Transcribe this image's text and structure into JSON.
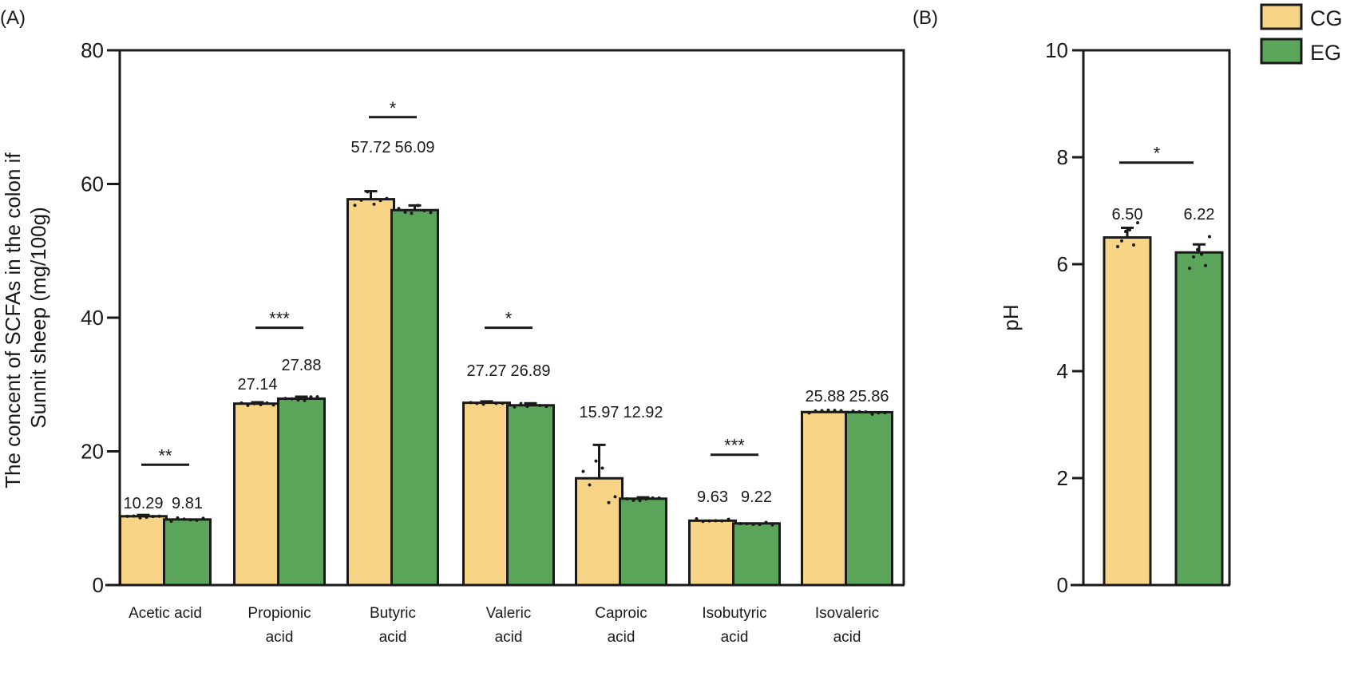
{
  "figure": {
    "legend": {
      "placement": "top-right",
      "entries": [
        {
          "label": "CG",
          "color": "#F7D486"
        },
        {
          "label": "EG",
          "color": "#5BA55A"
        }
      ]
    }
  },
  "chart_data": [
    {
      "panel": "(A)",
      "type": "bar",
      "title": "",
      "xlabel": "",
      "ylabel": "The concent of SCFAs in the colon if Sunnit sheep (mg/100g)",
      "ylabel_lines": [
        "The concent of SCFAs in the colon if",
        "Sunnit sheep (mg/100g)"
      ],
      "ylim": [
        0,
        80
      ],
      "yticks": [
        0,
        20,
        40,
        60,
        80
      ],
      "grid": false,
      "categories": [
        "Acetic acid",
        "Propionic acid",
        "Butyric acid",
        "Valeric acid",
        "Caproic acid",
        "Isobutyric acid",
        "Isovaleric acid"
      ],
      "category_lines": [
        [
          "Acetic acid"
        ],
        [
          "Propionic",
          "acid"
        ],
        [
          "Butyric",
          "acid"
        ],
        [
          "Valeric",
          "acid"
        ],
        [
          "Caproic",
          "acid"
        ],
        [
          "Isobutyric",
          "acid"
        ],
        [
          "Isovaleric",
          "acid"
        ]
      ],
      "series": [
        {
          "name": "CG",
          "color": "#F7D486",
          "values": [
            10.29,
            27.14,
            57.72,
            27.27,
            15.97,
            9.63,
            25.88
          ],
          "labels": [
            "10.29",
            "27.14",
            "57.72",
            "27.27",
            "15.97",
            "9.63",
            "25.88"
          ],
          "error": [
            0.2,
            0.2,
            1.2,
            0.2,
            5.0,
            0.15,
            0.1
          ]
        },
        {
          "name": "EG",
          "color": "#5BA55A",
          "values": [
            9.81,
            27.88,
            56.09,
            26.89,
            12.92,
            9.22,
            25.86
          ],
          "labels": [
            "9.81",
            "27.88",
            "56.09",
            "26.89",
            "12.92",
            "9.22",
            "25.86"
          ],
          "error": [
            0.1,
            0.3,
            0.7,
            0.3,
            0.2,
            0.15,
            0.1
          ]
        }
      ],
      "significance": [
        {
          "category": "Acetic acid",
          "label": "**",
          "y": 18
        },
        {
          "category": "Propionic acid",
          "label": "***",
          "y": 38.5
        },
        {
          "category": "Butyric acid",
          "label": "*",
          "y": 70
        },
        {
          "category": "Valeric acid",
          "label": "*",
          "y": 38.5
        },
        {
          "category": "Isobutyric acid",
          "label": "***",
          "y": 19.5
        }
      ]
    },
    {
      "panel": "(B)",
      "type": "bar",
      "title": "",
      "xlabel": "",
      "ylabel": "pH",
      "ylim": [
        0,
        10
      ],
      "yticks": [
        0,
        2,
        4,
        6,
        8,
        10
      ],
      "grid": false,
      "categories": [
        "CG",
        "EG"
      ],
      "series": [
        {
          "name": "pH",
          "values": [
            6.5,
            6.22
          ],
          "labels": [
            "6.50",
            "6.22"
          ],
          "colors": [
            "#F7D486",
            "#5BA55A"
          ],
          "error": [
            0.18,
            0.15
          ]
        }
      ],
      "significance": [
        {
          "label": "*",
          "y": 7.9
        }
      ]
    }
  ]
}
